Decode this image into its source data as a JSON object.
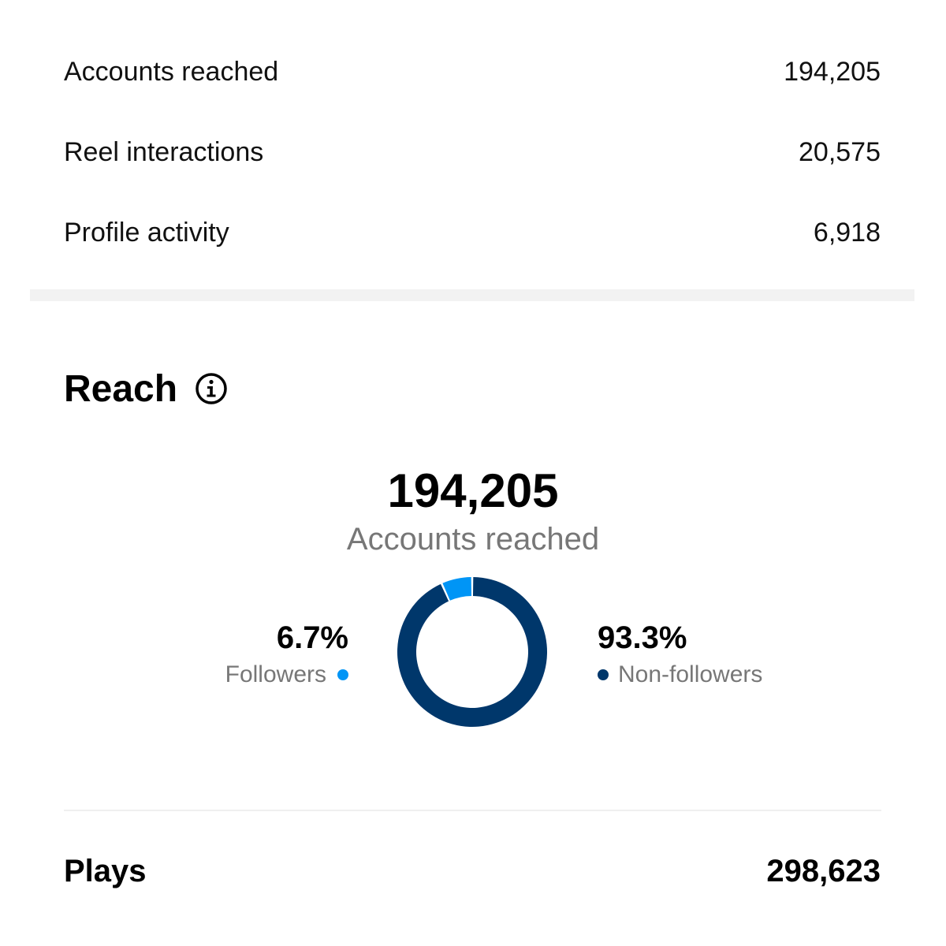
{
  "metrics": [
    {
      "label": "Accounts reached",
      "value": "194,205"
    },
    {
      "label": "Reel interactions",
      "value": "20,575"
    },
    {
      "label": "Profile activity",
      "value": "6,918"
    }
  ],
  "reach": {
    "title": "Reach",
    "info_icon": "info-icon",
    "total": "194,205",
    "total_label": "Accounts reached"
  },
  "chart_data": {
    "type": "pie",
    "categories": [
      "Followers",
      "Non-followers"
    ],
    "values": [
      6.7,
      93.3
    ],
    "labels": [
      "6.7%",
      "93.3%"
    ],
    "colors": [
      "#0095f6",
      "#00376b"
    ],
    "legend": "sides"
  },
  "plays": {
    "label": "Plays",
    "value": "298,623"
  }
}
